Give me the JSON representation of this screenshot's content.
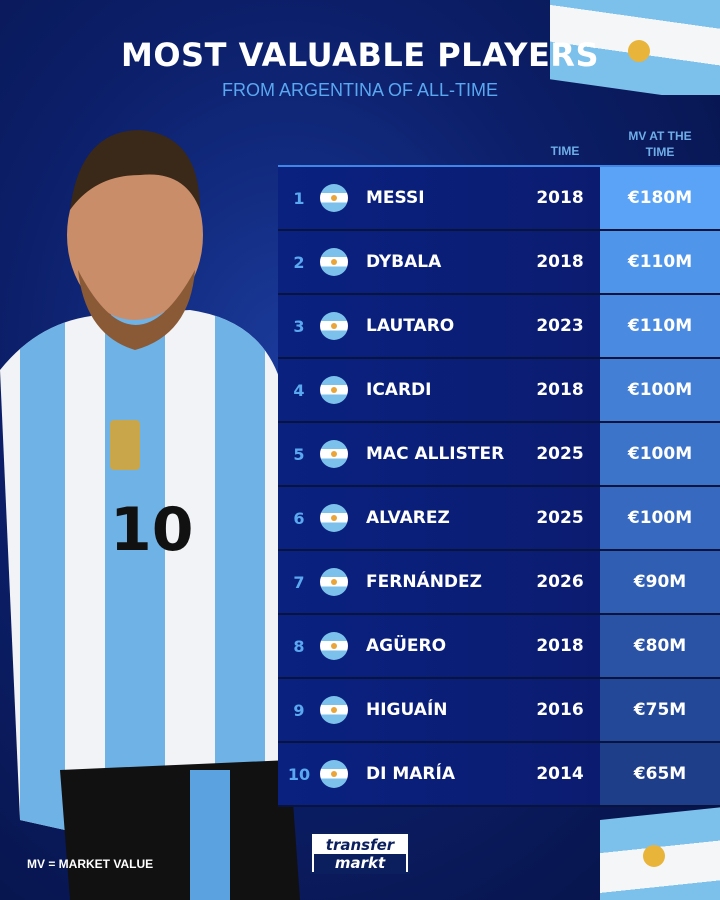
{
  "title": "MOST VALUABLE PLAYERS",
  "subtitle": "FROM ARGENTINA OF ALL-TIME",
  "headers": {
    "time": "TIME",
    "mv": "MV AT THE TIME"
  },
  "rows": [
    {
      "rank": "1",
      "name": "MESSI",
      "year": "2018",
      "mv": "€180M",
      "color": "#5aa3f7"
    },
    {
      "rank": "2",
      "name": "DYBALA",
      "year": "2018",
      "mv": "€110M",
      "color": "#4f95ea"
    },
    {
      "rank": "3",
      "name": "LAUTARO",
      "year": "2023",
      "mv": "€110M",
      "color": "#4a8ae0"
    },
    {
      "rank": "4",
      "name": "ICARDI",
      "year": "2018",
      "mv": "€100M",
      "color": "#437fd5"
    },
    {
      "rank": "5",
      "name": "MAC ALLISTER",
      "year": "2025",
      "mv": "€100M",
      "color": "#3c74ca"
    },
    {
      "rank": "6",
      "name": "ALVAREZ",
      "year": "2025",
      "mv": "€100M",
      "color": "#3669bf"
    },
    {
      "rank": "7",
      "name": "FERNÁNDEZ",
      "year": "2026",
      "mv": "€90M",
      "color": "#305eb3"
    },
    {
      "rank": "8",
      "name": "AGÜERO",
      "year": "2018",
      "mv": "€80M",
      "color": "#2a53a6"
    },
    {
      "rank": "9",
      "name": "HIGUAÍN",
      "year": "2016",
      "mv": "€75M",
      "color": "#244898"
    },
    {
      "rank": "10",
      "name": "DI MARÍA",
      "year": "2014",
      "mv": "€65M",
      "color": "#1f3e8a"
    }
  ],
  "footnote": "MV = MARKET VALUE",
  "logo": {
    "line1": "transfer",
    "line2": "markt"
  }
}
